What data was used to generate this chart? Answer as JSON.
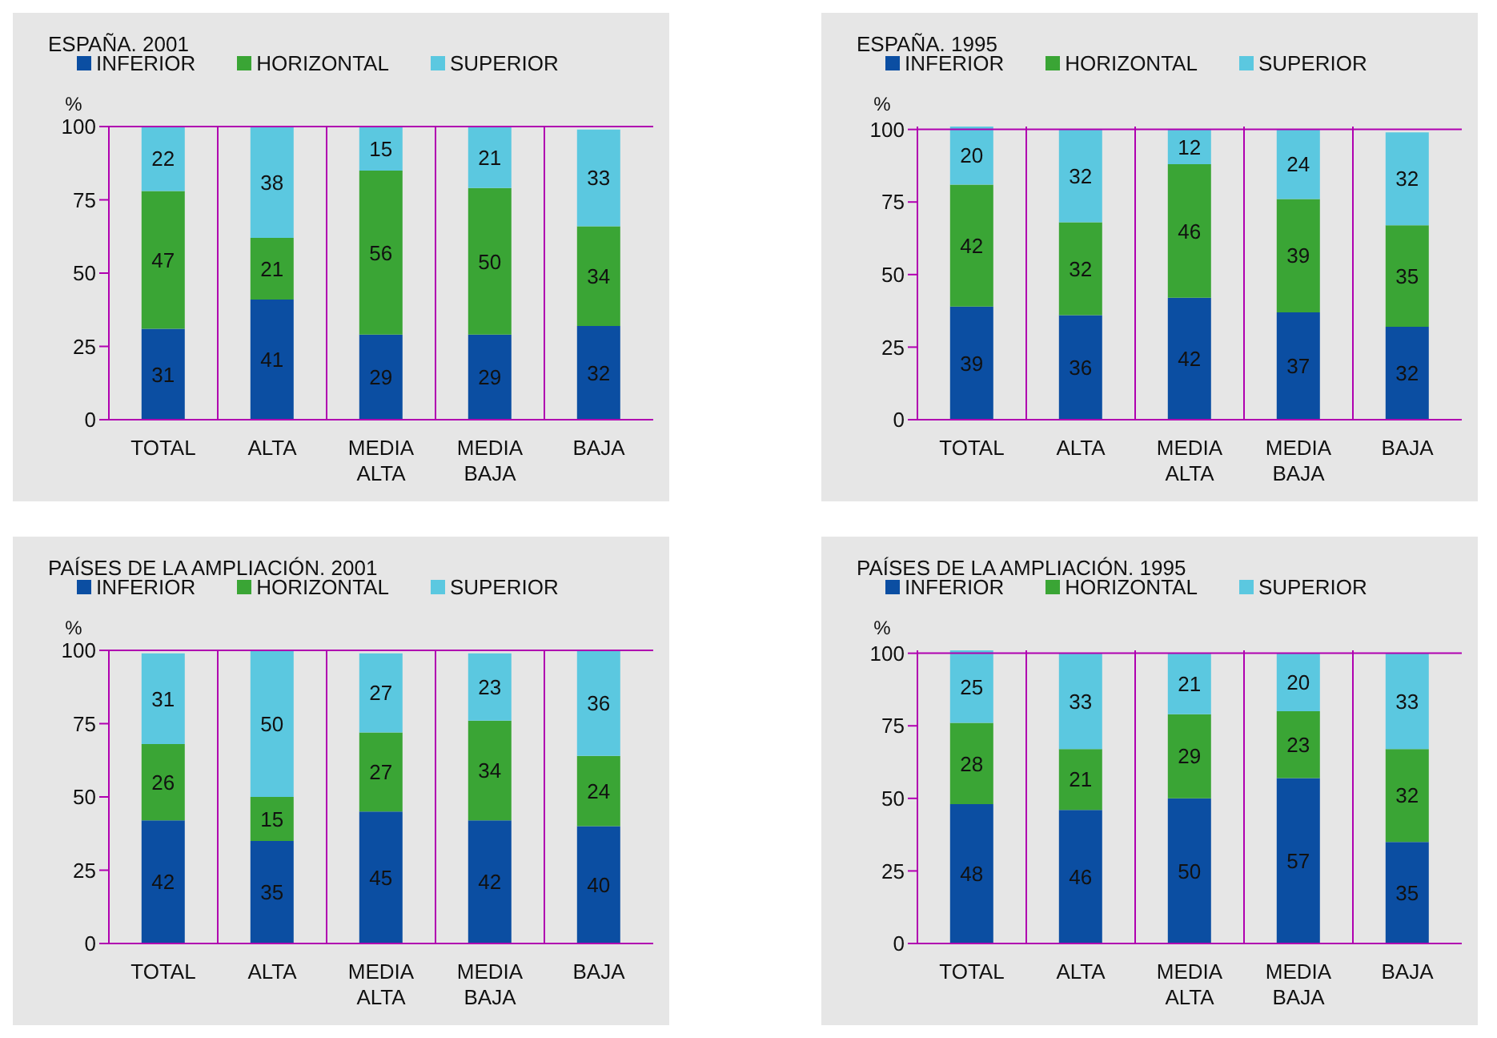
{
  "chart_data": [
    {
      "type": "bar",
      "title": "ESPAÑA. 2001",
      "ylabel": "%",
      "stacked": true,
      "categories": [
        "TOTAL",
        "ALTA",
        "MEDIA ALTA",
        "MEDIA BAJA",
        "BAJA"
      ],
      "ylim": [
        0,
        100
      ],
      "yticks": [
        0,
        25,
        50,
        75,
        100
      ],
      "grid": "x",
      "legend": "top left",
      "data_labels": true,
      "series": [
        {
          "name": "INFERIOR",
          "color": "#0b4ea2",
          "values": [
            31,
            41,
            29,
            29,
            32
          ]
        },
        {
          "name": "HORIZONTAL",
          "color": "#3aa535",
          "values": [
            47,
            21,
            56,
            50,
            34
          ]
        },
        {
          "name": "SUPERIOR",
          "color": "#5bc8e0",
          "values": [
            22,
            38,
            15,
            21,
            33
          ]
        }
      ]
    },
    {
      "type": "bar",
      "title": "ESPAÑA. 1995",
      "ylabel": "%",
      "stacked": true,
      "categories": [
        "TOTAL",
        "ALTA",
        "MEDIA ALTA",
        "MEDIA BAJA",
        "BAJA"
      ],
      "ylim": [
        0,
        101
      ],
      "yticks": [
        0,
        25,
        50,
        75,
        100
      ],
      "grid": "x",
      "legend": "top left",
      "data_labels": true,
      "series": [
        {
          "name": "INFERIOR",
          "color": "#0b4ea2",
          "values": [
            39,
            36,
            42,
            37,
            32
          ]
        },
        {
          "name": "HORIZONTAL",
          "color": "#3aa535",
          "values": [
            42,
            32,
            46,
            39,
            35
          ]
        },
        {
          "name": "SUPERIOR",
          "color": "#5bc8e0",
          "values": [
            20,
            32,
            12,
            24,
            32
          ]
        }
      ]
    },
    {
      "type": "bar",
      "title": "PAÍSES DE LA AMPLIACIÓN. 2001",
      "ylabel": "%",
      "stacked": true,
      "categories": [
        "TOTAL",
        "ALTA",
        "MEDIA ALTA",
        "MEDIA BAJA",
        "BAJA"
      ],
      "ylim": [
        0,
        100
      ],
      "yticks": [
        0,
        25,
        50,
        75,
        100
      ],
      "grid": "x",
      "legend": "top left",
      "data_labels": true,
      "series": [
        {
          "name": "INFERIOR",
          "color": "#0b4ea2",
          "values": [
            42,
            35,
            45,
            42,
            40
          ]
        },
        {
          "name": "HORIZONTAL",
          "color": "#3aa535",
          "values": [
            26,
            15,
            27,
            34,
            24
          ]
        },
        {
          "name": "SUPERIOR",
          "color": "#5bc8e0",
          "values": [
            31,
            50,
            27,
            23,
            36
          ]
        }
      ]
    },
    {
      "type": "bar",
      "title": "PAÍSES DE LA AMPLIACIÓN. 1995",
      "ylabel": "%",
      "stacked": true,
      "categories": [
        "TOTAL",
        "ALTA",
        "MEDIA ALTA",
        "MEDIA BAJA",
        "BAJA"
      ],
      "ylim": [
        0,
        101
      ],
      "yticks": [
        0,
        25,
        50,
        75,
        100
      ],
      "grid": "x",
      "legend": "top left",
      "data_labels": true,
      "series": [
        {
          "name": "INFERIOR",
          "color": "#0b4ea2",
          "values": [
            48,
            46,
            50,
            57,
            35
          ]
        },
        {
          "name": "HORIZONTAL",
          "color": "#3aa535",
          "values": [
            28,
            21,
            29,
            23,
            32
          ]
        },
        {
          "name": "SUPERIOR",
          "color": "#5bc8e0",
          "values": [
            25,
            33,
            21,
            20,
            33
          ]
        }
      ]
    }
  ]
}
